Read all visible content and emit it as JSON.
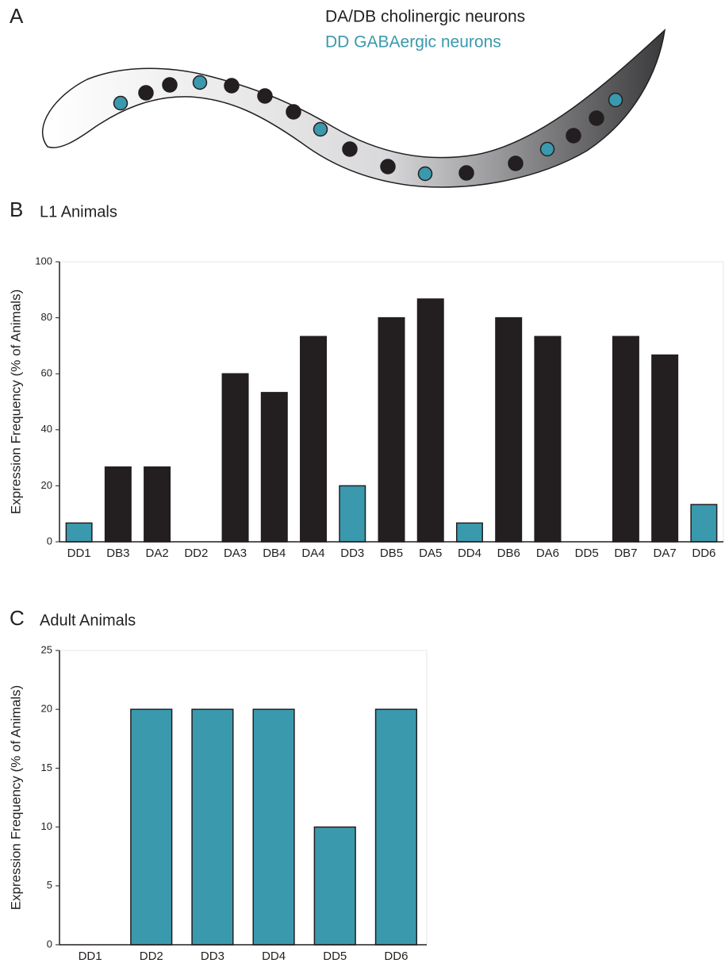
{
  "panel_a": {
    "label": "A",
    "legend": [
      {
        "text": "DA/DB cholinergic neurons",
        "color": "#231f20"
      },
      {
        "text": "DD GABAergic neurons",
        "color": "#3a99ad"
      }
    ]
  },
  "chart_data": [
    {
      "type": "bar",
      "panel": "B",
      "title": "L1 Animals",
      "ylabel": "Expression Frequency (% of Animals)",
      "categories": [
        "DD1",
        "DB3",
        "DA2",
        "DD2",
        "DA3",
        "DB4",
        "DA4",
        "DD3",
        "DB5",
        "DA5",
        "DD4",
        "DB6",
        "DA6",
        "DD5",
        "DB7",
        "DA7",
        "DD6"
      ],
      "values": [
        6.7,
        26.7,
        26.7,
        0,
        60,
        53.3,
        73.3,
        20,
        80,
        86.7,
        6.7,
        80,
        73.3,
        0,
        73.3,
        66.7,
        13.3
      ],
      "colors": [
        "#3a99ad",
        "#231f20",
        "#231f20",
        "#3a99ad",
        "#231f20",
        "#231f20",
        "#231f20",
        "#3a99ad",
        "#231f20",
        "#231f20",
        "#3a99ad",
        "#231f20",
        "#231f20",
        "#3a99ad",
        "#231f20",
        "#231f20",
        "#3a99ad"
      ],
      "ylim": [
        0,
        100
      ],
      "yticks": [
        0,
        20,
        40,
        60,
        80,
        100
      ]
    },
    {
      "type": "bar",
      "panel": "C",
      "title": "Adult Animals",
      "ylabel": "Expression Frequency (% of Animals)",
      "categories": [
        "DD1",
        "DD2",
        "DD3",
        "DD4",
        "DD5",
        "DD6"
      ],
      "values": [
        0,
        20,
        20,
        20,
        10,
        20
      ],
      "colors": [
        "#3a99ad",
        "#3a99ad",
        "#3a99ad",
        "#3a99ad",
        "#3a99ad",
        "#3a99ad"
      ],
      "ylim": [
        0,
        25
      ],
      "yticks": [
        0,
        5,
        10,
        15,
        20,
        25
      ]
    }
  ]
}
